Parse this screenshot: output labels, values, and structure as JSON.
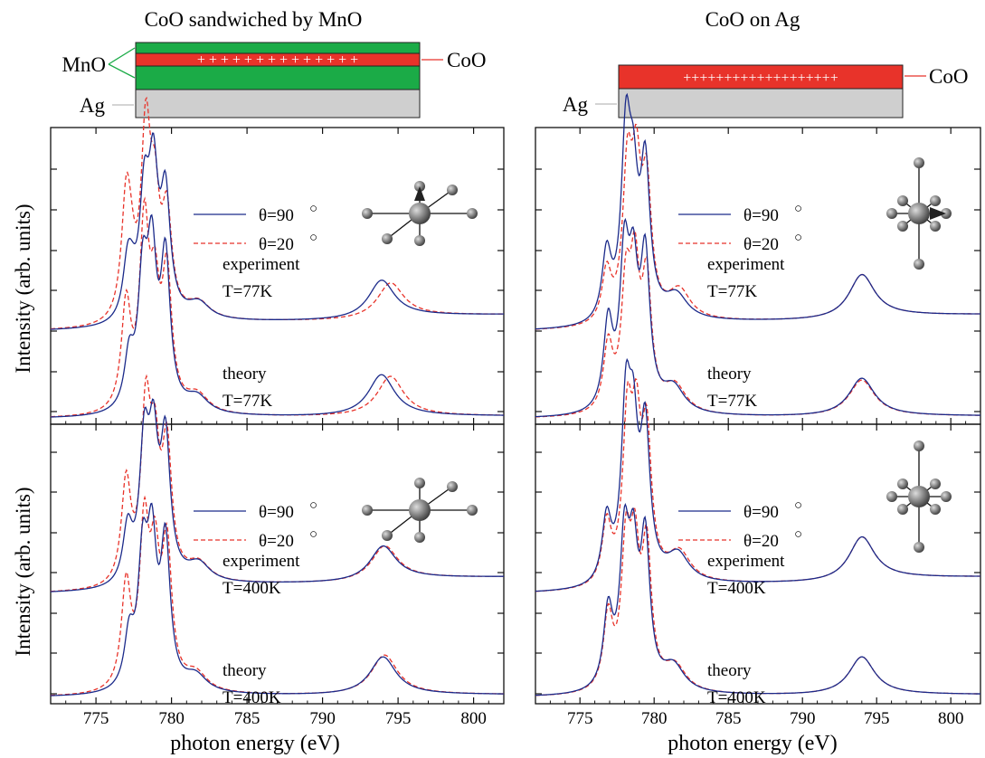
{
  "chart_data": {
    "type": "line",
    "xlabel": "photon energy (eV)",
    "ylabel": "Intensity (arb. units)",
    "xlim": [
      772,
      802
    ],
    "xticks": [
      775,
      780,
      785,
      790,
      795,
      800
    ],
    "xtick_labels": [
      "775",
      "780",
      "785",
      "790",
      "795",
      "800"
    ],
    "series_legend": [
      {
        "name": "θ=90",
        "color": "#1b2a8a",
        "style": "solid"
      },
      {
        "name": "θ=20",
        "color": "#e8332a",
        "style": "dashed"
      }
    ],
    "degree_symbol": "○",
    "columns": [
      {
        "title": "CoO sandwiched by MnO",
        "layers": {
          "left_a": "MnO",
          "left_b": "Ag",
          "right": "CoO",
          "marks": "+ + + + + + + + + + + + + +"
        },
        "panels": [
          {
            "crystal": "moment-up",
            "curves": [
              {
                "label": "experiment",
                "temp": "T=77K"
              },
              {
                "label": "theory",
                "temp": "T=77K"
              }
            ]
          },
          {
            "crystal": "plain",
            "curves": [
              {
                "label": "experiment",
                "temp": "T=400K"
              },
              {
                "label": "theory",
                "temp": "T=400K"
              }
            ]
          }
        ]
      },
      {
        "title": "CoO on Ag",
        "layers": {
          "left_b": "Ag",
          "right": "CoO",
          "marks": "+++++++++++++++++++"
        },
        "panels": [
          {
            "crystal": "moment-side",
            "curves": [
              {
                "label": "experiment",
                "temp": "T=77K"
              },
              {
                "label": "theory",
                "temp": "T=77K"
              }
            ]
          },
          {
            "crystal": "plain-tall",
            "curves": [
              {
                "label": "experiment",
                "temp": "T=400K"
              },
              {
                "label": "theory",
                "temp": "T=400K"
              }
            ]
          }
        ]
      }
    ],
    "peaks": {
      "sandwich_77_exp_90": [
        [
          777.1,
          0.29
        ],
        [
          777.4,
          0.12
        ],
        [
          778.2,
          0.62
        ],
        [
          778.8,
          0.74
        ],
        [
          779.6,
          0.64
        ],
        [
          781.8,
          0.09
        ],
        [
          793.9,
          0.21
        ]
      ],
      "sandwich_77_exp_20": [
        [
          777.0,
          0.62
        ],
        [
          777.3,
          0.2
        ],
        [
          778.3,
          0.99
        ],
        [
          778.9,
          0.55
        ],
        [
          779.7,
          0.53
        ],
        [
          781.8,
          0.09
        ],
        [
          794.5,
          0.19
        ]
      ],
      "sandwich_77_th_90": [
        [
          777.2,
          0.28
        ],
        [
          778.1,
          0.67
        ],
        [
          778.7,
          0.78
        ],
        [
          779.6,
          0.81
        ],
        [
          781.7,
          0.09
        ],
        [
          793.9,
          0.23
        ]
      ],
      "sandwich_77_th_20": [
        [
          777.0,
          0.58
        ],
        [
          778.2,
          0.98
        ],
        [
          778.9,
          0.56
        ],
        [
          779.7,
          0.72
        ],
        [
          781.7,
          0.1
        ],
        [
          794.5,
          0.22
        ]
      ],
      "sandwich_400_exp_90": [
        [
          777.1,
          0.3
        ],
        [
          778.2,
          0.71
        ],
        [
          778.8,
          0.68
        ],
        [
          779.6,
          0.74
        ],
        [
          781.8,
          0.1
        ],
        [
          794.0,
          0.19
        ]
      ],
      "sandwich_400_exp_20": [
        [
          777.0,
          0.56
        ],
        [
          778.3,
          0.9
        ],
        [
          778.9,
          0.6
        ],
        [
          779.7,
          0.7
        ],
        [
          781.8,
          0.1
        ],
        [
          794.1,
          0.19
        ]
      ],
      "sandwich_400_th_90": [
        [
          777.2,
          0.28
        ],
        [
          778.1,
          0.67
        ],
        [
          778.7,
          0.73
        ],
        [
          779.6,
          0.78
        ],
        [
          781.6,
          0.09
        ],
        [
          794.0,
          0.21
        ]
      ],
      "sandwich_400_th_20": [
        [
          777.0,
          0.57
        ],
        [
          778.2,
          0.85
        ],
        [
          778.9,
          0.63
        ],
        [
          779.7,
          0.75
        ],
        [
          781.6,
          0.1
        ],
        [
          794.1,
          0.22
        ]
      ],
      "ag_77_exp_90": [
        [
          776.8,
          0.37
        ],
        [
          778.1,
          0.96
        ],
        [
          778.6,
          0.58
        ],
        [
          779.4,
          0.8
        ],
        [
          781.5,
          0.13
        ],
        [
          794.0,
          0.24
        ]
      ],
      "ag_77_exp_20": [
        [
          776.8,
          0.28
        ],
        [
          778.2,
          0.78
        ],
        [
          778.8,
          0.71
        ],
        [
          779.5,
          0.68
        ],
        [
          781.7,
          0.16
        ],
        [
          794.0,
          0.24
        ]
      ],
      "ag_77_th_90": [
        [
          776.9,
          0.47
        ],
        [
          778.0,
          0.79
        ],
        [
          778.6,
          0.64
        ],
        [
          779.4,
          0.8
        ],
        [
          781.3,
          0.14
        ],
        [
          794.0,
          0.21
        ]
      ],
      "ag_77_th_20": [
        [
          776.9,
          0.36
        ],
        [
          778.1,
          0.63
        ],
        [
          778.7,
          0.7
        ],
        [
          779.5,
          0.68
        ],
        [
          781.4,
          0.15
        ],
        [
          794.0,
          0.2
        ]
      ],
      "ag_400_exp_90": [
        [
          776.8,
          0.35
        ],
        [
          778.1,
          0.9
        ],
        [
          778.6,
          0.68
        ],
        [
          779.4,
          0.79
        ],
        [
          781.6,
          0.15
        ],
        [
          794.0,
          0.24
        ]
      ],
      "ag_400_exp_20": [
        [
          776.8,
          0.33
        ],
        [
          778.2,
          0.84
        ],
        [
          778.8,
          0.72
        ],
        [
          779.5,
          0.74
        ],
        [
          781.7,
          0.16
        ],
        [
          794.0,
          0.24
        ]
      ],
      "ag_400_th_90": [
        [
          776.9,
          0.42
        ],
        [
          778.0,
          0.76
        ],
        [
          778.6,
          0.64
        ],
        [
          779.4,
          0.78
        ],
        [
          781.3,
          0.14
        ],
        [
          794.0,
          0.21
        ]
      ],
      "ag_400_th_20": [
        [
          776.9,
          0.4
        ],
        [
          778.1,
          0.73
        ],
        [
          778.7,
          0.66
        ],
        [
          779.5,
          0.74
        ],
        [
          781.4,
          0.14
        ],
        [
          794.0,
          0.21
        ]
      ]
    }
  }
}
